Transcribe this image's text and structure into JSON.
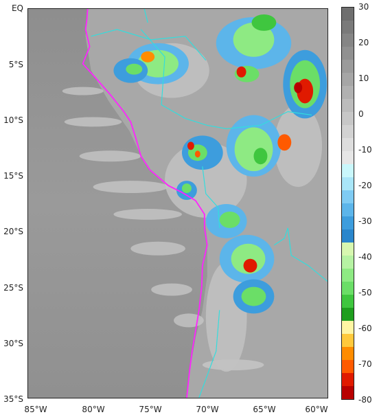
{
  "map": {
    "lat_labels": [
      "EQ",
      "5°S",
      "10°S",
      "15°S",
      "20°S",
      "25°S",
      "30°S",
      "35°S"
    ],
    "lon_labels": [
      "85°W",
      "80°W",
      "75°W",
      "70°W",
      "65°W",
      "60°W"
    ],
    "lat_range": [
      0,
      -35
    ],
    "lon_range": [
      -85.7,
      -59.5
    ]
  },
  "colorbar": {
    "ticks": [
      "30",
      "20",
      "10",
      "0",
      "-10",
      "-20",
      "-30",
      "-40",
      "-50",
      "-60",
      "-70",
      "-80"
    ],
    "range": [
      30,
      -80
    ],
    "colors": [
      "#6f6f6f",
      "#7a7a7a",
      "#858585",
      "#909090",
      "#9b9b9b",
      "#a6a6a6",
      "#b1b1b1",
      "#bcbcbc",
      "#c7c7c7",
      "#d2d2d2",
      "#dddddd",
      "#e6e6e6",
      "#c9f7fb",
      "#a9e6f8",
      "#7fcbf3",
      "#5cb5ea",
      "#3d9ddd",
      "#2a86cc",
      "#d7f7b0",
      "#b6f2a3",
      "#8eea83",
      "#6bde67",
      "#3fc63f",
      "#1e9e1e",
      "#fff5a3",
      "#ffc93c",
      "#ff8c00",
      "#ff5a00",
      "#e01a00",
      "#b80000"
    ]
  },
  "overlay": {
    "coast_color": "#ff22ff",
    "border_color": "#33dddd"
  }
}
